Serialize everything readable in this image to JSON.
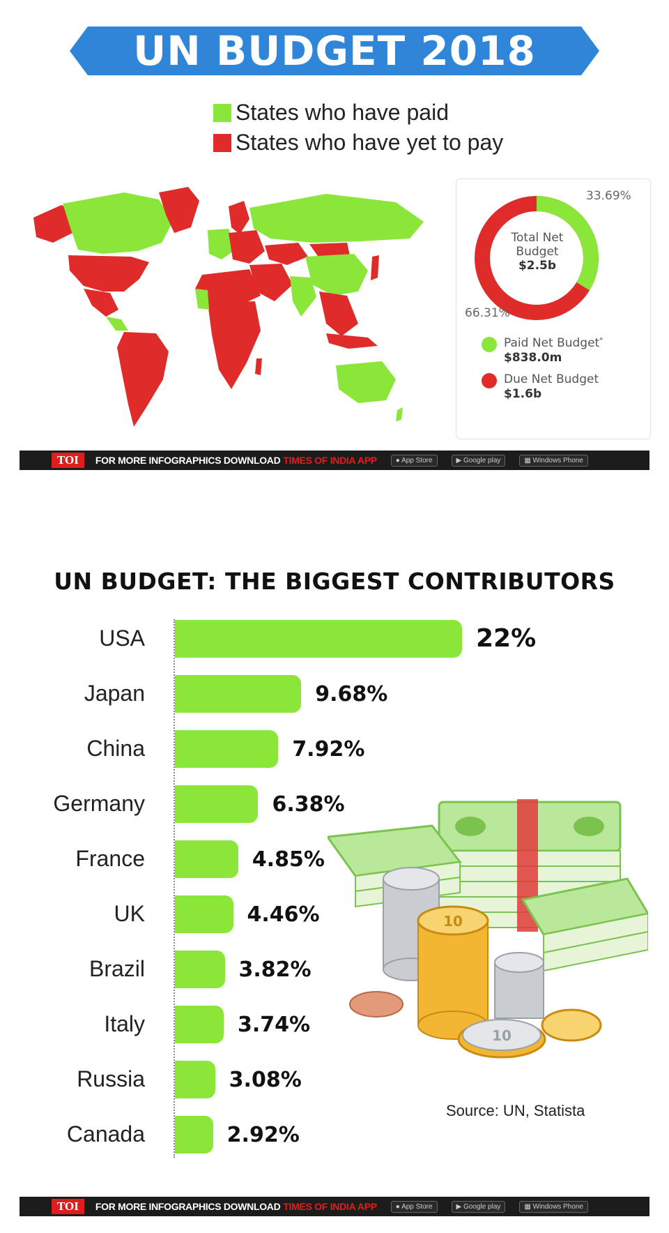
{
  "header": {
    "title": "UN BUDGET 2018"
  },
  "legend": {
    "paid": {
      "label": "States who have paid",
      "color": "#8be63a"
    },
    "unpaid": {
      "label": "States who have yet to pay",
      "color": "#e02b2b"
    }
  },
  "donut": {
    "center_line1": "Total Net",
    "center_line2": "Budget",
    "center_value": "$2.5b",
    "paid_pct_label": "33.69%",
    "due_pct_label": "66.31%",
    "paid_fraction": 0.3369,
    "paid_label": "Paid Net Budget",
    "paid_asterisk": "*",
    "paid_value": "$838.0m",
    "due_label": "Due Net Budget",
    "due_value": "$1.6b"
  },
  "footer": {
    "badge": "TOI",
    "text": "FOR MORE  INFOGRAPHICS DOWNLOAD",
    "brand": "TIMES OF INDIA  APP",
    "app_store": "App Store",
    "google_play": "Google play",
    "windows": "Windows Phone"
  },
  "chart_data": {
    "type": "bar",
    "title": "UN BUDGET: THE BIGGEST CONTRIBUTORS",
    "categories": [
      "USA",
      "Japan",
      "China",
      "Germany",
      "France",
      "UK",
      "Brazil",
      "Italy",
      "Russia",
      "Canada"
    ],
    "values": [
      22,
      9.68,
      7.92,
      6.38,
      4.85,
      4.46,
      3.82,
      3.74,
      3.08,
      2.92
    ],
    "value_labels": [
      "22%",
      "9.68%",
      "7.92%",
      "6.38%",
      "4.85%",
      "4.46%",
      "3.82%",
      "3.74%",
      "3.08%",
      "2.92%"
    ],
    "orientation": "horizontal",
    "bar_color": "#8be63a",
    "xlabel": "",
    "ylabel": ""
  },
  "source": "Source: UN, Statista"
}
